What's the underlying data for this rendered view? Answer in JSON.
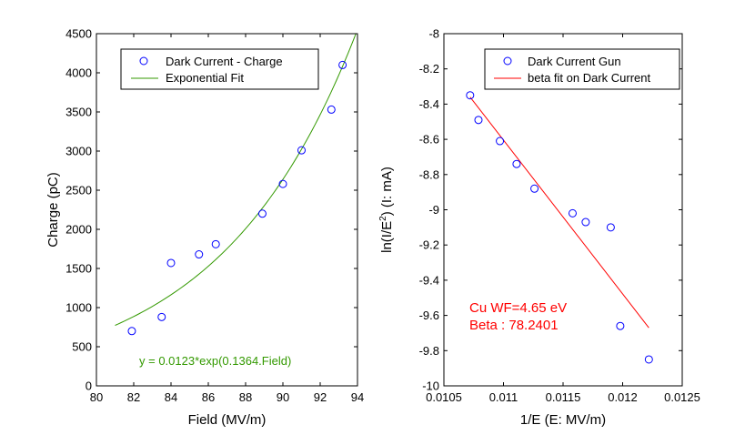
{
  "chart_data": [
    {
      "type": "scatter",
      "xlabel": "Field (MV/m)",
      "ylabel": "Charge (pC)",
      "xlim": [
        80,
        94
      ],
      "ylim": [
        0,
        4500
      ],
      "xticks": [
        "80",
        "82",
        "84",
        "86",
        "88",
        "90",
        "92",
        "94"
      ],
      "yticks": [
        "0",
        "500",
        "1000",
        "1500",
        "2000",
        "2500",
        "3000",
        "3500",
        "4000",
        "4500"
      ],
      "legend_position": "top-right",
      "series": [
        {
          "name": "Dark Current - Charge",
          "marker": "circle",
          "color": "#0000ff",
          "x": [
            81.9,
            83.5,
            84.0,
            85.5,
            86.4,
            88.9,
            90.0,
            91.0,
            92.6,
            93.2
          ],
          "y": [
            700,
            880,
            1570,
            1680,
            1810,
            2200,
            2580,
            3010,
            3530,
            4100
          ]
        },
        {
          "name": "Exponential Fit",
          "line": true,
          "color": "#339900",
          "equation": {
            "a": 0.0123,
            "b": 0.1364,
            "x_from": 81,
            "x_to": 94
          }
        }
      ],
      "annotations": [
        {
          "text": "y = 0.0123*exp(0.1364.Field)",
          "color": "#339900"
        }
      ]
    },
    {
      "type": "scatter",
      "xlabel": "1/E (E: MV/m)",
      "ylabel_parts": [
        "ln(I/E",
        "2",
        ") (I: mA)"
      ],
      "xlim": [
        0.0105,
        0.0125
      ],
      "ylim": [
        -10,
        -8
      ],
      "xticks": [
        "0.0105",
        "0.011",
        "0.0115",
        "0.012",
        "0.0125"
      ],
      "yticks": [
        "-10",
        "-9.8",
        "-9.6",
        "-9.4",
        "-9.2",
        "-9",
        "-8.8",
        "-8.6",
        "-8.4",
        "-8.2",
        "-8"
      ],
      "legend_position": "top-right",
      "series": [
        {
          "name": "Dark Current Gun",
          "marker": "circle",
          "color": "#0000ff",
          "x": [
            0.01072,
            0.01079,
            0.01097,
            0.01111,
            0.01126,
            0.01158,
            0.01169,
            0.0119,
            0.01198,
            0.01222
          ],
          "y": [
            -8.35,
            -8.49,
            -8.61,
            -8.74,
            -8.88,
            -9.02,
            -9.07,
            -9.1,
            -9.66,
            -9.85
          ]
        },
        {
          "name": "beta fit on Dark Current",
          "line": true,
          "color": "#ff0000",
          "x": [
            0.01072,
            0.01222
          ],
          "y": [
            -8.36,
            -9.67
          ]
        }
      ],
      "annotations": [
        {
          "text": "Cu WF=4.65 eV",
          "color": "#ff0000"
        },
        {
          "text": "Beta : 78.2401",
          "color": "#ff0000"
        }
      ]
    }
  ]
}
